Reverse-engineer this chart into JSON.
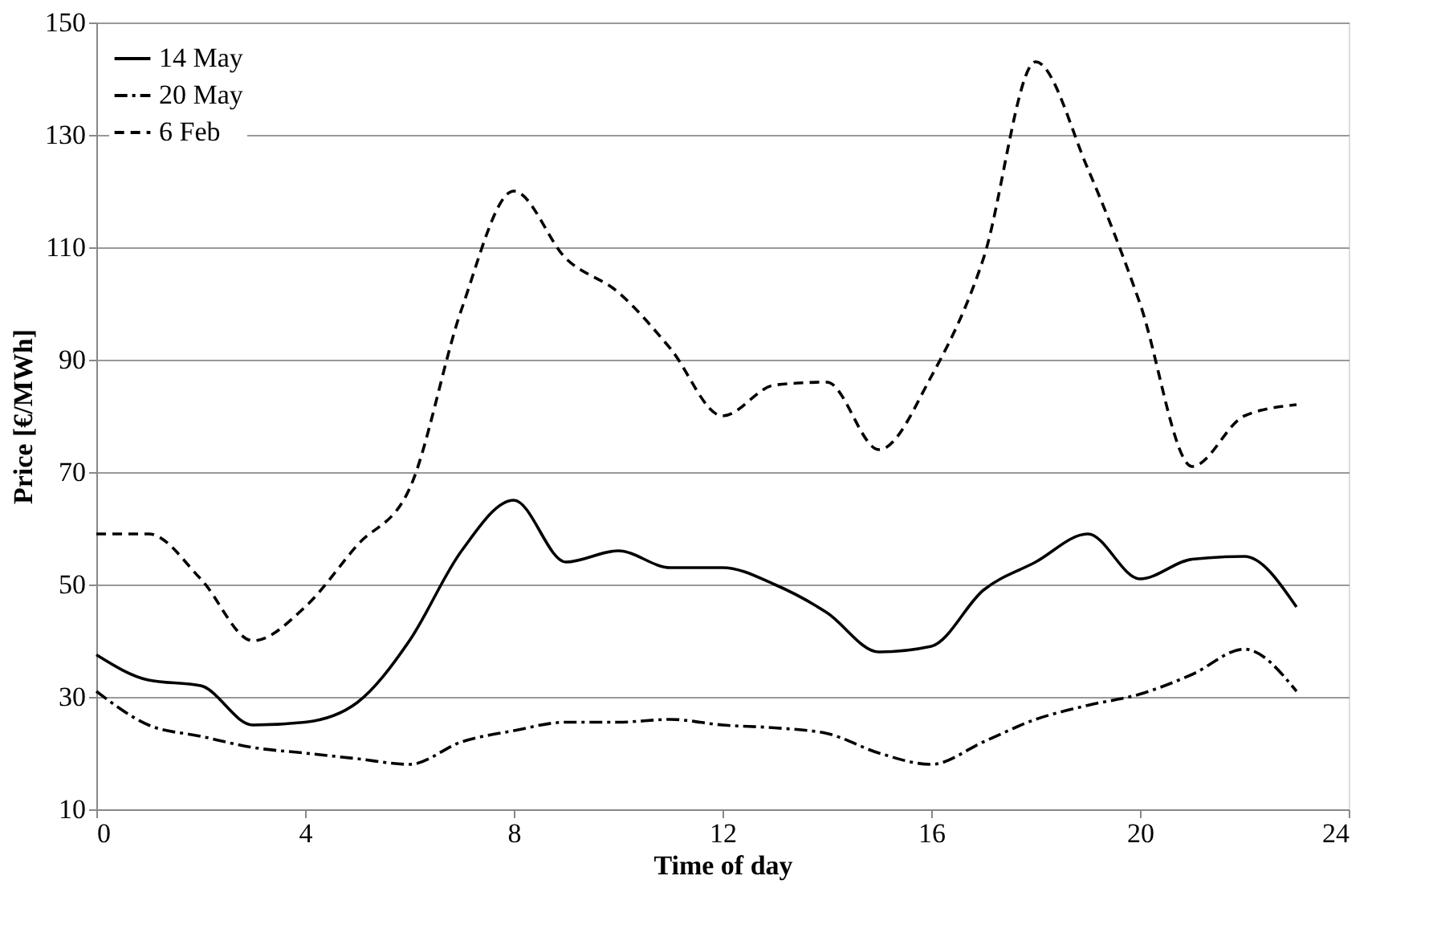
{
  "chart_data": {
    "type": "line",
    "xlabel": "Time of day",
    "ylabel": "Price [€/MWh]",
    "x": [
      0,
      1,
      2,
      3,
      4,
      5,
      6,
      7,
      8,
      9,
      10,
      11,
      12,
      13,
      14,
      15,
      16,
      17,
      18,
      19,
      20,
      21,
      22,
      23
    ],
    "series": [
      {
        "name": "14 May",
        "color": "#000000",
        "line_style": "solid",
        "values": [
          37.5,
          33,
          32,
          25,
          25.5,
          29,
          40,
          56,
          65,
          54,
          56,
          53,
          53,
          50,
          45,
          38,
          39,
          49,
          54,
          59,
          51,
          54.5,
          55,
          46
        ]
      },
      {
        "name": "20 May",
        "color": "#000000",
        "line_style": "dashdot",
        "values": [
          31,
          25,
          23,
          21,
          20,
          19,
          18,
          22,
          24,
          25.5,
          25.5,
          26,
          25,
          24.5,
          23.5,
          20,
          18,
          22,
          26,
          28.5,
          30.5,
          34,
          38.5,
          31
        ]
      },
      {
        "name": "6 Feb",
        "color": "#000000",
        "line_style": "dashed",
        "values": [
          59,
          59,
          51,
          40,
          46,
          57,
          67,
          99,
          120,
          108,
          102,
          92,
          80,
          85.5,
          86,
          74,
          87,
          108,
          143,
          124,
          100,
          71,
          80,
          82
        ]
      }
    ],
    "xlim": [
      0,
      24
    ],
    "xticks": [
      0,
      4,
      8,
      12,
      16,
      20,
      24
    ],
    "ylim": [
      10,
      150
    ],
    "yticks": [
      10,
      30,
      50,
      70,
      90,
      110,
      130,
      150
    ],
    "grid": "y",
    "legend": "top left",
    "marker": "none"
  }
}
